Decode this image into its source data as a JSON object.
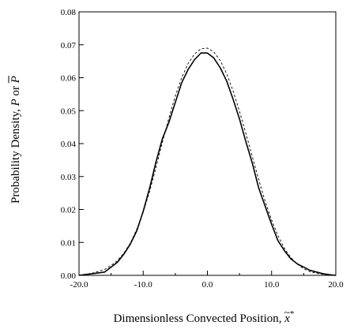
{
  "chart_data": {
    "type": "line",
    "title": "",
    "xlabel": {
      "text": "Dimensionless Convected Position, ",
      "symbol": "x",
      "symbol_accent": "~",
      "symbol_superscript": "*"
    },
    "ylabel": {
      "prefix": "Probability Density, ",
      "symbol1": "P",
      "connector": " or ",
      "symbol2": "P",
      "symbol2_overline": true
    },
    "xlim": [
      -20,
      20
    ],
    "ylim": [
      0,
      0.08
    ],
    "xticks": [
      -20,
      -10,
      0,
      10,
      20
    ],
    "xtick_labels": [
      "-20.0",
      "-10.0",
      "0.0",
      "10.0",
      "20.0"
    ],
    "yticks": [
      0,
      0.01,
      0.02,
      0.03,
      0.04,
      0.05,
      0.06,
      0.07,
      0.08
    ],
    "ytick_labels": [
      "0.00",
      "0.01",
      "0.02",
      "0.03",
      "0.04",
      "0.05",
      "0.06",
      "0.07",
      "0.08"
    ],
    "grid": false,
    "legend": "none",
    "series": [
      {
        "style": "solid",
        "color": "#000000",
        "x": [
          -20,
          -18,
          -16,
          -15,
          -14,
          -13,
          -12,
          -11,
          -10,
          -9,
          -8,
          -7,
          -6,
          -5,
          -4,
          -3,
          -2,
          -1,
          0,
          1,
          2,
          3,
          4,
          5,
          6,
          7,
          8,
          9,
          10,
          11,
          12,
          13,
          14,
          15,
          16,
          17,
          18,
          19,
          20
        ],
        "y": [
          0.0,
          0.0005,
          0.001,
          0.0025,
          0.004,
          0.0065,
          0.0095,
          0.0135,
          0.0195,
          0.0265,
          0.0345,
          0.0415,
          0.0465,
          0.0525,
          0.0585,
          0.0625,
          0.0655,
          0.0675,
          0.0675,
          0.066,
          0.063,
          0.059,
          0.0535,
          0.0475,
          0.0405,
          0.034,
          0.0265,
          0.021,
          0.0155,
          0.0105,
          0.0075,
          0.005,
          0.0035,
          0.0025,
          0.0015,
          0.001,
          0.0005,
          0.0002,
          0.0
        ]
      },
      {
        "style": "dashed",
        "color": "#000000",
        "x": [
          -20,
          -18,
          -16,
          -15,
          -14,
          -13,
          -12,
          -11,
          -10,
          -9,
          -8,
          -7,
          -6,
          -5,
          -4,
          -3,
          -2,
          -1,
          0,
          1,
          2,
          3,
          4,
          5,
          6,
          7,
          8,
          9,
          10,
          11,
          12,
          13,
          14,
          15,
          16,
          17,
          18,
          19,
          20
        ],
        "y": [
          0.0001,
          0.0006,
          0.0018,
          0.003,
          0.0045,
          0.0068,
          0.0098,
          0.014,
          0.0192,
          0.0255,
          0.0328,
          0.0405,
          0.0478,
          0.0545,
          0.06,
          0.0643,
          0.0672,
          0.0688,
          0.069,
          0.0678,
          0.0652,
          0.0612,
          0.056,
          0.0498,
          0.043,
          0.036,
          0.029,
          0.0225,
          0.0168,
          0.012,
          0.0082,
          0.0054,
          0.0034,
          0.002,
          0.0011,
          0.0006,
          0.0003,
          0.0001,
          0.0
        ]
      }
    ]
  }
}
